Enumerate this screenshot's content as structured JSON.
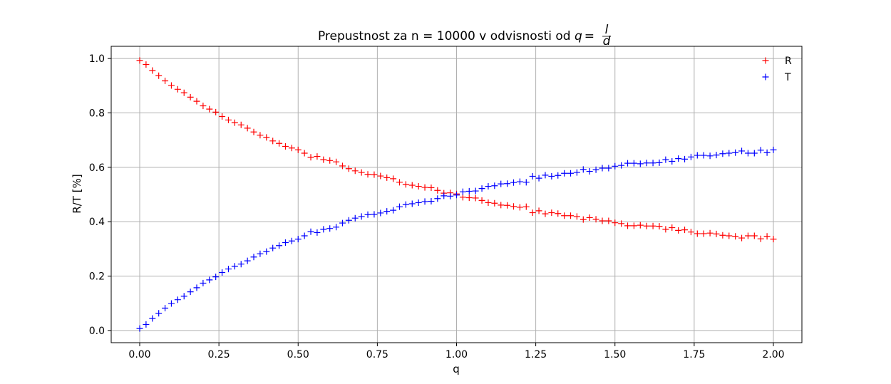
{
  "chart_data": {
    "type": "scatter",
    "title_text": "Prepustnost za n = 10000 v odvisnosti od ",
    "title_math": {
      "var": "q",
      "eq": "=",
      "num": "l",
      "den": "d"
    },
    "xlabel": "q",
    "ylabel": "R/T [%]",
    "xlim": [
      -0.09,
      2.09
    ],
    "ylim": [
      -0.045,
      1.045
    ],
    "xticks": [
      0.0,
      0.25,
      0.5,
      0.75,
      1.0,
      1.25,
      1.5,
      1.75,
      2.0
    ],
    "xtick_labels": [
      "0.00",
      "0.25",
      "0.50",
      "0.75",
      "1.00",
      "1.25",
      "1.50",
      "1.75",
      "2.00"
    ],
    "yticks": [
      0.0,
      0.2,
      0.4,
      0.6,
      0.8,
      1.0
    ],
    "ytick_labels": [
      "0.0",
      "0.2",
      "0.4",
      "0.6",
      "0.8",
      "1.0"
    ],
    "grid": true,
    "legend": {
      "position": "top-right",
      "frame": false
    },
    "marker": "+",
    "x": [
      0.0,
      0.02,
      0.04,
      0.06,
      0.08,
      0.1,
      0.12,
      0.14,
      0.16,
      0.18,
      0.2,
      0.22,
      0.24,
      0.26,
      0.28,
      0.3,
      0.32,
      0.34,
      0.36,
      0.38,
      0.4,
      0.42,
      0.44,
      0.46,
      0.48,
      0.5,
      0.52,
      0.54,
      0.56,
      0.58,
      0.6,
      0.62,
      0.64,
      0.66,
      0.68,
      0.7,
      0.72,
      0.74,
      0.76,
      0.78,
      0.8,
      0.82,
      0.84,
      0.86,
      0.88,
      0.9,
      0.92,
      0.94,
      0.96,
      0.98,
      1.0,
      1.02,
      1.04,
      1.06,
      1.08,
      1.1,
      1.12,
      1.14,
      1.16,
      1.18,
      1.2,
      1.22,
      1.24,
      1.26,
      1.28,
      1.3,
      1.32,
      1.34,
      1.36,
      1.38,
      1.4,
      1.42,
      1.44,
      1.46,
      1.48,
      1.5,
      1.52,
      1.54,
      1.56,
      1.58,
      1.6,
      1.62,
      1.64,
      1.66,
      1.68,
      1.7,
      1.72,
      1.74,
      1.76,
      1.78,
      1.8,
      1.82,
      1.84,
      1.86,
      1.88,
      1.9,
      1.92,
      1.94,
      1.96,
      1.98,
      2.0
    ],
    "series": [
      {
        "name": "R",
        "color": "#ff0000",
        "values": [
          0.993,
          0.978,
          0.956,
          0.937,
          0.918,
          0.901,
          0.887,
          0.874,
          0.858,
          0.843,
          0.826,
          0.814,
          0.803,
          0.787,
          0.774,
          0.764,
          0.756,
          0.744,
          0.73,
          0.718,
          0.71,
          0.697,
          0.688,
          0.677,
          0.671,
          0.664,
          0.652,
          0.637,
          0.64,
          0.628,
          0.625,
          0.62,
          0.605,
          0.595,
          0.587,
          0.581,
          0.574,
          0.573,
          0.568,
          0.562,
          0.558,
          0.545,
          0.537,
          0.534,
          0.53,
          0.526,
          0.525,
          0.515,
          0.505,
          0.506,
          0.502,
          0.49,
          0.488,
          0.487,
          0.478,
          0.47,
          0.468,
          0.461,
          0.46,
          0.456,
          0.453,
          0.455,
          0.433,
          0.44,
          0.429,
          0.433,
          0.43,
          0.422,
          0.422,
          0.419,
          0.408,
          0.415,
          0.409,
          0.403,
          0.403,
          0.396,
          0.393,
          0.385,
          0.385,
          0.387,
          0.384,
          0.384,
          0.383,
          0.372,
          0.378,
          0.368,
          0.37,
          0.362,
          0.356,
          0.356,
          0.358,
          0.355,
          0.35,
          0.348,
          0.346,
          0.34,
          0.348,
          0.348,
          0.337,
          0.346,
          0.336
        ]
      },
      {
        "name": "T",
        "color": "#0000ff",
        "values": [
          0.007,
          0.022,
          0.044,
          0.063,
          0.082,
          0.099,
          0.113,
          0.126,
          0.142,
          0.157,
          0.174,
          0.186,
          0.197,
          0.213,
          0.226,
          0.236,
          0.244,
          0.256,
          0.27,
          0.282,
          0.29,
          0.303,
          0.312,
          0.323,
          0.329,
          0.336,
          0.348,
          0.363,
          0.36,
          0.372,
          0.375,
          0.38,
          0.395,
          0.405,
          0.413,
          0.419,
          0.426,
          0.427,
          0.432,
          0.438,
          0.442,
          0.455,
          0.463,
          0.466,
          0.47,
          0.474,
          0.475,
          0.485,
          0.495,
          0.494,
          0.498,
          0.51,
          0.512,
          0.513,
          0.522,
          0.53,
          0.532,
          0.539,
          0.54,
          0.544,
          0.547,
          0.545,
          0.567,
          0.56,
          0.571,
          0.567,
          0.57,
          0.578,
          0.578,
          0.581,
          0.592,
          0.585,
          0.591,
          0.597,
          0.597,
          0.604,
          0.607,
          0.615,
          0.615,
          0.613,
          0.616,
          0.616,
          0.617,
          0.628,
          0.622,
          0.632,
          0.63,
          0.638,
          0.644,
          0.644,
          0.642,
          0.645,
          0.65,
          0.652,
          0.654,
          0.66,
          0.652,
          0.652,
          0.663,
          0.654,
          0.664
        ]
      }
    ]
  }
}
